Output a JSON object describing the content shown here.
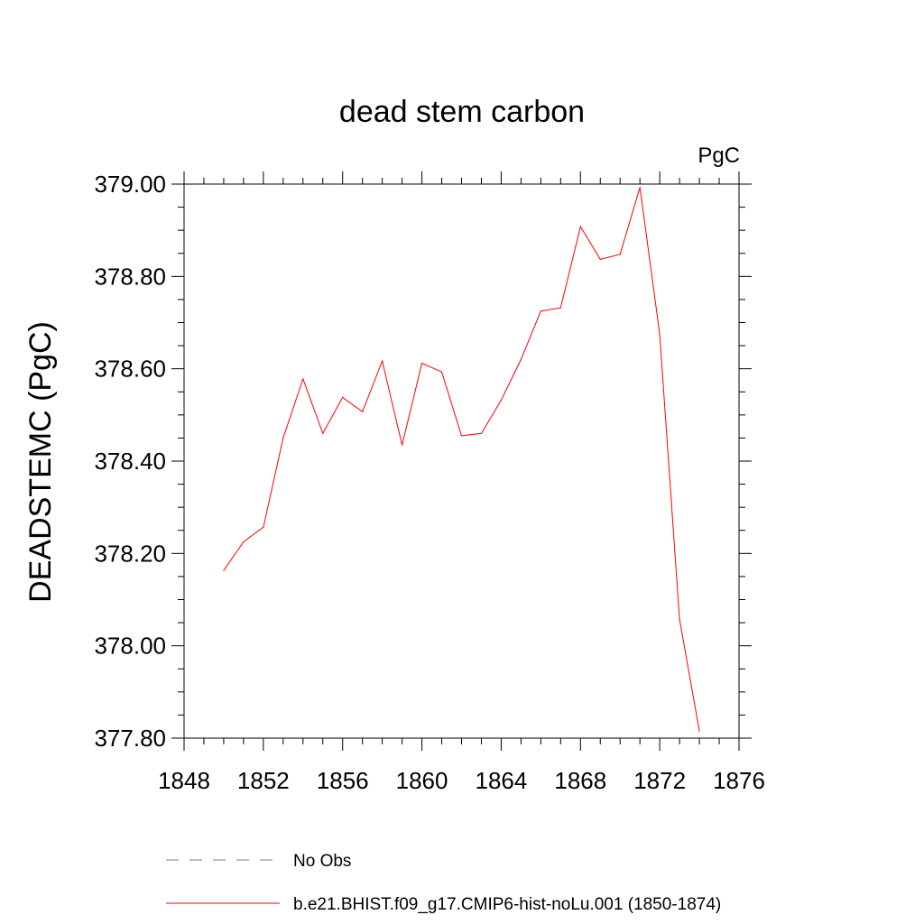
{
  "chart_data": {
    "type": "line",
    "title": "dead stem carbon",
    "units": "PgC",
    "ylabel": "DEADSTEMC  (PgC)",
    "xlabel": "",
    "xlim": [
      1848,
      1876
    ],
    "ylim": [
      377.8,
      379.0
    ],
    "x_ticks": [
      1848,
      1852,
      1856,
      1860,
      1864,
      1868,
      1872,
      1876
    ],
    "x_tick_labels": [
      "1848",
      "1852",
      "1856",
      "1860",
      "1864",
      "1868",
      "1872",
      "1876"
    ],
    "y_ticks": [
      377.8,
      378.0,
      378.2,
      378.4,
      378.6,
      378.8,
      379.0
    ],
    "y_tick_labels": [
      "377.80",
      "378.00",
      "378.20",
      "378.40",
      "378.60",
      "378.80",
      "379.00"
    ],
    "grid": false,
    "legend_position": "bottom",
    "series": [
      {
        "name": "b.e21.BHIST.f09_g17.CMIP6-hist-noLu.001 (1850-1874)",
        "color": "#ff0000",
        "style": "solid",
        "x": [
          1850,
          1851,
          1852,
          1853,
          1854,
          1855,
          1856,
          1857,
          1858,
          1859,
          1860,
          1861,
          1862,
          1863,
          1864,
          1865,
          1866,
          1867,
          1868,
          1869,
          1870,
          1871,
          1872,
          1873,
          1874
        ],
        "values": [
          378.163,
          378.225,
          378.257,
          378.45,
          378.578,
          378.46,
          378.538,
          378.507,
          378.617,
          378.435,
          378.612,
          378.593,
          378.455,
          378.46,
          378.532,
          378.62,
          378.725,
          378.732,
          378.908,
          378.837,
          378.848,
          378.993,
          378.675,
          378.057,
          377.815
        ]
      },
      {
        "name": "No Obs",
        "color": "#7b6fb0",
        "style": "dashed",
        "x": [],
        "values": []
      }
    ]
  }
}
